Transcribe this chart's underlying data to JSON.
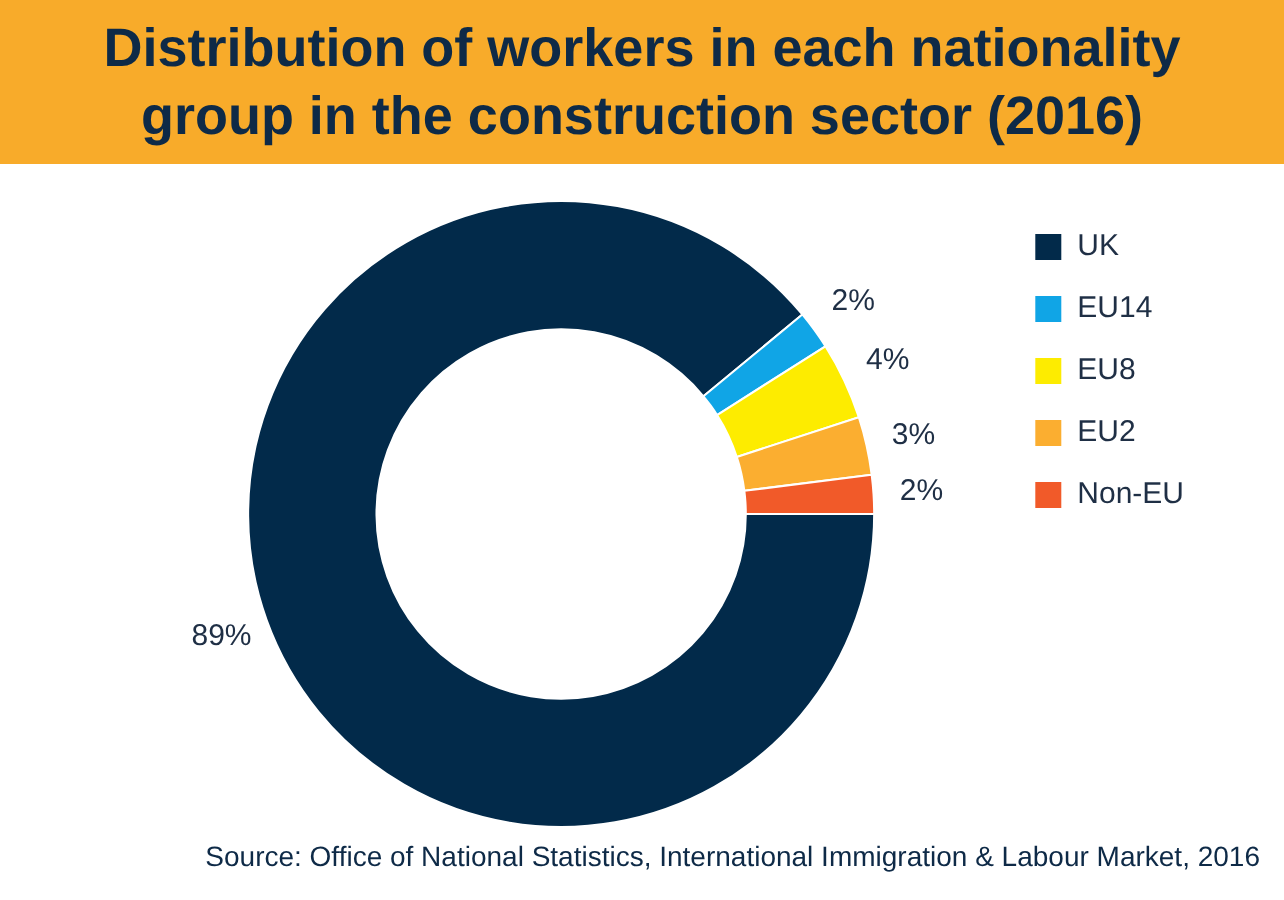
{
  "chart_data": {
    "type": "donut",
    "title": "Distribution of workers in each nationality group in the construction sector (2016)",
    "categories": [
      "UK",
      "EU14",
      "EU8",
      "EU2",
      "Non-EU"
    ],
    "values": [
      89,
      2,
      4,
      3,
      2
    ],
    "colors": [
      "#022a4a",
      "#10a5e6",
      "#fdec00",
      "#fbae30",
      "#f15a29"
    ],
    "value_labels": [
      "89%",
      "2%",
      "4%",
      "3%",
      "2%"
    ],
    "legend": "right",
    "annotations": [
      "Source: Office of National Statistics, International Immigration & Labour Market, 2016"
    ]
  }
}
